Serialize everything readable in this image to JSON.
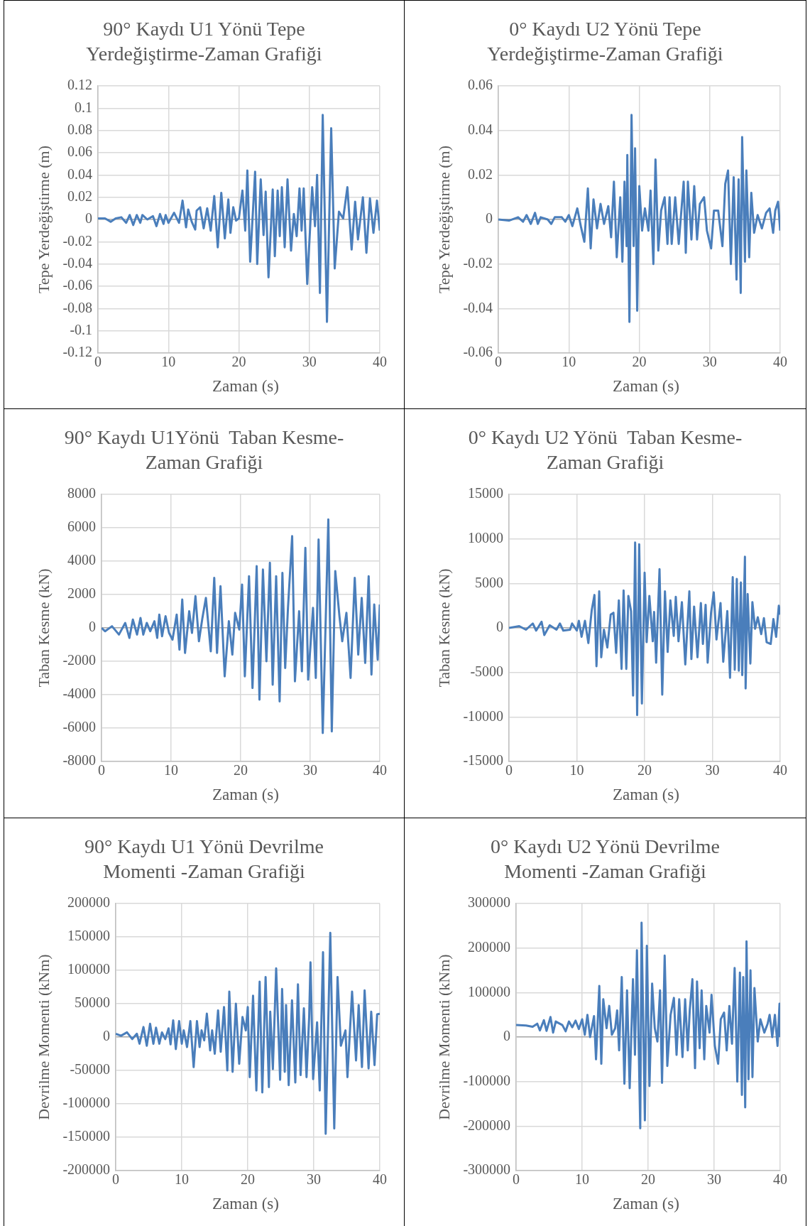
{
  "chart_data": [
    {
      "type": "line",
      "title": "90° Kaydı U1 Yönü Tepe Yerdeğiştirme-Zaman Grafiği",
      "xlabel": "Zaman (s)",
      "ylabel": "Tepe Yerdeğiştirme (m)",
      "xlim": [
        0,
        40
      ],
      "xticks": [
        0,
        10,
        20,
        30,
        40
      ],
      "ylim": [
        -0.12,
        0.12
      ],
      "yticks": [
        -0.12,
        -0.1,
        -0.08,
        -0.06,
        -0.04,
        -0.02,
        0,
        0.02,
        0.04,
        0.06,
        0.08,
        0.1,
        0.12
      ],
      "grid": true,
      "marker": "none",
      "series": [
        {
          "color": "#4a7ebb",
          "x": [
            0,
            1,
            1.8,
            2.5,
            3.3,
            4,
            4.5,
            5,
            5.5,
            6,
            6.3,
            7,
            7.8,
            8.3,
            8.8,
            9.3,
            9.6,
            10,
            10.8,
            11.5,
            12,
            12.5,
            12.8,
            13.3,
            13.8,
            14,
            14.5,
            15,
            15.5,
            16,
            16.5,
            17,
            17.5,
            18,
            18.5,
            18.8,
            19.2,
            19.6,
            20,
            20.5,
            20.9,
            21.2,
            21.6,
            22.3,
            22.6,
            23.1,
            23.5,
            23.8,
            24.2,
            24.8,
            25.1,
            25.5,
            25.8,
            26.1,
            26.5,
            26.9,
            27.4,
            27.8,
            28.2,
            28.6,
            28.9,
            29.2,
            29.7,
            30.4,
            30.8,
            31.1,
            31.5,
            31.9,
            32.5,
            33.1,
            33.6,
            34.2,
            34.8,
            35.4,
            36,
            36.5,
            36.9,
            37.6,
            38.1,
            38.6,
            39.1,
            39.6,
            40
          ],
          "values": [
            0.001,
            0.001,
            -0.002,
            0.001,
            0.002,
            -0.003,
            0.004,
            -0.005,
            0.004,
            -0.003,
            0.004,
            0,
            0.003,
            -0.006,
            0.005,
            -0.004,
            0.004,
            -0.003,
            0.006,
            -0.003,
            0.017,
            -0.007,
            0.009,
            -0.002,
            -0.009,
            0.008,
            0.011,
            -0.008,
            0.01,
            -0.01,
            0.021,
            -0.025,
            0.024,
            -0.017,
            0.018,
            -0.012,
            0.011,
            -0.001,
            0.001,
            0.026,
            -0.01,
            0.044,
            -0.038,
            0.043,
            -0.04,
            0.036,
            -0.014,
            0.025,
            -0.052,
            0.027,
            -0.033,
            0.026,
            -0.015,
            0.029,
            -0.025,
            0.036,
            -0.028,
            0.005,
            -0.015,
            0.028,
            -0.01,
            0.028,
            -0.058,
            0.029,
            -0.006,
            0.04,
            -0.066,
            0.094,
            -0.092,
            0.082,
            -0.044,
            0.007,
            0.001,
            0.029,
            -0.027,
            0.016,
            -0.018,
            0.02,
            -0.03,
            0.019,
            -0.012,
            0.017,
            -0.01
          ]
        }
      ]
    },
    {
      "type": "line",
      "title": "0° Kaydı U2 Yönü Tepe Yerdeğiştirme-Zaman Grafiği",
      "xlabel": "Zaman (s)",
      "ylabel": "Tepe Yerdeğiştirme (m)",
      "xlim": [
        0,
        40
      ],
      "xticks": [
        0,
        10,
        20,
        30,
        40
      ],
      "ylim": [
        -0.06,
        0.06
      ],
      "yticks": [
        -0.06,
        -0.04,
        -0.02,
        0,
        0.02,
        0.04,
        0.06
      ],
      "grid": true,
      "marker": "none",
      "series": [
        {
          "color": "#4a7ebb",
          "x": [
            0,
            1.5,
            2.8,
            3.5,
            4,
            4.6,
            5.2,
            5.6,
            6,
            7,
            7.5,
            8,
            9,
            9.5,
            10,
            10.5,
            11.2,
            11.7,
            12.2,
            12.7,
            13.1,
            13.5,
            14,
            14.5,
            15,
            15.6,
            16,
            16.4,
            16.8,
            17.3,
            17.6,
            17.9,
            18.2,
            18.3,
            18.6,
            18.9,
            19.2,
            19.4,
            19.7,
            20,
            20.4,
            20.8,
            21.3,
            21.6,
            22,
            22.3,
            22.7,
            23.1,
            23.6,
            24,
            24.3,
            24.6,
            25.1,
            25.6,
            26.3,
            26.6,
            26.9,
            27.4,
            27.8,
            28.2,
            28.6,
            29.2,
            29.6,
            30.2,
            30.6,
            31.2,
            31.8,
            32.2,
            32.6,
            33,
            33.4,
            33.8,
            34.1,
            34.4,
            34.6,
            35,
            35.2,
            35.6,
            35.9,
            36.3,
            36.8,
            37.4,
            38,
            38.5,
            39,
            39.3,
            39.7,
            40
          ],
          "values": [
            0,
            -0.0005,
            0.001,
            -0.001,
            0.002,
            -0.002,
            0.003,
            -0.002,
            0.001,
            0,
            -0.002,
            0.001,
            0.001,
            -0.001,
            0.002,
            -0.003,
            0.005,
            -0.003,
            -0.01,
            0.014,
            -0.013,
            0.009,
            -0.004,
            0.007,
            -0.002,
            0.006,
            -0.008,
            0.017,
            -0.017,
            0.01,
            -0.019,
            0.017,
            -0.012,
            0.029,
            -0.046,
            0.047,
            -0.012,
            0.032,
            -0.041,
            0.015,
            -0.005,
            0.005,
            -0.005,
            0.013,
            -0.02,
            0.027,
            -0.014,
            0.004,
            0.01,
            -0.011,
            0.01,
            -0.011,
            0.01,
            -0.011,
            0.017,
            -0.015,
            0.017,
            -0.009,
            0.015,
            -0.009,
            0.007,
            0.01,
            -0.005,
            -0.013,
            0.004,
            0.004,
            -0.012,
            0.016,
            0.022,
            -0.02,
            0.019,
            -0.027,
            0.018,
            -0.033,
            0.037,
            -0.019,
            0.022,
            -0.017,
            0.012,
            -0.006,
            0.002,
            -0.004,
            0.003,
            0.005,
            -0.006,
            0.004,
            0.008,
            -0.005
          ]
        }
      ]
    },
    {
      "type": "line",
      "title": "90° Kaydı U1Yönü  Taban Kesme-Zaman Grafiği",
      "xlabel": "Zaman (s)",
      "ylabel": "Taban Kesme (kN)",
      "xlim": [
        0,
        40
      ],
      "xticks": [
        0,
        10,
        20,
        30,
        40
      ],
      "ylim": [
        -8000,
        8000
      ],
      "yticks": [
        -8000,
        -6000,
        -4000,
        -2000,
        0,
        2000,
        4000,
        6000,
        8000
      ],
      "grid": true,
      "marker": "none",
      "series": [
        {
          "color": "#4a7ebb",
          "x": [
            0,
            0.5,
            1.5,
            2.5,
            3.4,
            4,
            4.5,
            5.1,
            5.6,
            6,
            6.5,
            7,
            7.6,
            8,
            8.3,
            8.7,
            9.2,
            9.7,
            10.2,
            10.8,
            11.2,
            11.6,
            12,
            12.6,
            13,
            13.5,
            14,
            14.5,
            15,
            15.7,
            16.2,
            16.6,
            17.1,
            17.7,
            18.3,
            18.8,
            19.2,
            19.8,
            20.2,
            20.6,
            21.2,
            21.7,
            22.3,
            22.7,
            23.2,
            23.7,
            24.2,
            24.6,
            25.1,
            25.6,
            26,
            26.4,
            26.8,
            27.4,
            27.8,
            28.4,
            28.8,
            29.3,
            29.7,
            30.4,
            30.8,
            31.2,
            31.8,
            32.6,
            33.1,
            33.6,
            34.2,
            34.6,
            35.2,
            35.8,
            36.4,
            36.9,
            37.4,
            37.9,
            38.4,
            38.8,
            39.2,
            39.7,
            40
          ],
          "values": [
            0,
            -200,
            100,
            -400,
            300,
            -600,
            500,
            -400,
            600,
            -400,
            300,
            -200,
            400,
            -600,
            800,
            -500,
            700,
            -300,
            -700,
            800,
            -1300,
            1700,
            -1500,
            1000,
            -300,
            1900,
            -800,
            600,
            1800,
            -1400,
            3000,
            -1500,
            2500,
            -2900,
            400,
            -1600,
            900,
            -100,
            2600,
            -2900,
            3100,
            -3600,
            3700,
            -4300,
            3500,
            -2000,
            3900,
            -3400,
            3100,
            -4400,
            3300,
            -2400,
            1200,
            5500,
            -3200,
            1000,
            -2600,
            4800,
            -3100,
            1200,
            -3000,
            5300,
            -6300,
            6500,
            -6200,
            3400,
            700,
            -800,
            900,
            -3000,
            3000,
            -1600,
            1800,
            -2100,
            3100,
            -2800,
            1400,
            -1900,
            1400
          ]
        }
      ]
    },
    {
      "type": "line",
      "title": "0° Kaydı U2 Yönü  Taban Kesme-Zaman Grafiği",
      "xlabel": "Zaman (s)",
      "ylabel": "Taban Kesme (kN)",
      "xlim": [
        0,
        40
      ],
      "xticks": [
        0,
        10,
        20,
        30,
        40
      ],
      "ylim": [
        -15000,
        15000
      ],
      "yticks": [
        -15000,
        -10000,
        -5000,
        0,
        5000,
        10000,
        15000
      ],
      "grid": true,
      "marker": "none",
      "series": [
        {
          "color": "#4a7ebb",
          "x": [
            0,
            1.5,
            2.5,
            3.5,
            4,
            4.8,
            5.2,
            6,
            7,
            7.5,
            8,
            9,
            9.3,
            10,
            10.3,
            10.7,
            11.2,
            11.7,
            12.2,
            12.6,
            12.9,
            13.3,
            13.6,
            14,
            14.5,
            15,
            15.4,
            15.8,
            16.2,
            16.6,
            16.9,
            17.3,
            17.6,
            18,
            18.3,
            18.6,
            18.9,
            19.2,
            19.6,
            20,
            20.3,
            20.7,
            21.2,
            21.4,
            21.7,
            22.2,
            22.6,
            23,
            23.4,
            23.8,
            24.3,
            24.6,
            25,
            25.5,
            26,
            26.6,
            26.9,
            27.3,
            27.8,
            28.3,
            28.6,
            29,
            29.3,
            29.8,
            30.2,
            30.6,
            31.2,
            31.6,
            32.2,
            32.6,
            33,
            33.3,
            33.6,
            33.9,
            34.2,
            34.4,
            34.8,
            34.9,
            35.2,
            35.6,
            35.9,
            36.3,
            36.7,
            37.2,
            37.6,
            38,
            38.6,
            39,
            39.4,
            39.8,
            40
          ],
          "values": [
            0,
            200,
            -200,
            500,
            -300,
            700,
            -800,
            300,
            -200,
            500,
            -300,
            -200,
            500,
            -300,
            800,
            -1000,
            800,
            -1700,
            2000,
            3700,
            -4300,
            4100,
            -3300,
            -200,
            -2200,
            1500,
            1700,
            -2800,
            3100,
            -4600,
            4200,
            -4600,
            3600,
            1900,
            -7600,
            9600,
            -9800,
            9400,
            -8500,
            6200,
            -1600,
            3600,
            -1500,
            1800,
            -3900,
            6600,
            -7500,
            4100,
            -2700,
            3100,
            -900,
            3500,
            -1500,
            2900,
            -4100,
            4100,
            -3500,
            2400,
            -3300,
            2800,
            -1800,
            2600,
            -3900,
            1700,
            4000,
            -1300,
            2800,
            -3800,
            1900,
            -5600,
            5700,
            -4700,
            5500,
            -4800,
            5100,
            -5300,
            8000,
            -6800,
            3800,
            -4000,
            2900,
            -100,
            1200,
            -700,
            1100,
            -1600,
            -1800,
            1000,
            -1000,
            2500,
            1500
          ]
        }
      ]
    },
    {
      "type": "line",
      "title": "90° Kaydı U1 Yönü Devrilme Momenti -Zaman Grafiği",
      "xlabel": "Zaman (s)",
      "ylabel": "Devrilme Momenti (kNm)",
      "xlim": [
        0,
        40
      ],
      "xticks": [
        0,
        10,
        20,
        30,
        40
      ],
      "ylim": [
        -200000,
        200000
      ],
      "yticks": [
        -200000,
        -150000,
        -100000,
        -50000,
        0,
        50000,
        100000,
        150000,
        200000
      ],
      "grid": true,
      "marker": "none",
      "series": [
        {
          "color": "#4a7ebb",
          "x": [
            0,
            0.8,
            1.7,
            2.5,
            3.2,
            3.6,
            4.2,
            4.7,
            5.2,
            5.7,
            6.1,
            6.6,
            7,
            7.5,
            8,
            8.3,
            8.7,
            9.1,
            9.6,
            10,
            10.3,
            10.8,
            11.3,
            11.8,
            12.3,
            12.7,
            13,
            13.4,
            13.8,
            14.3,
            14.6,
            15,
            15.5,
            15.9,
            16.4,
            16.9,
            17.2,
            17.7,
            18.2,
            18.7,
            19.2,
            19.7,
            20,
            20.3,
            20.8,
            21.3,
            21.8,
            22.2,
            22.7,
            23.2,
            23.4,
            23.8,
            24.3,
            24.9,
            25.2,
            25.6,
            25.8,
            26.2,
            26.7,
            27.2,
            27.6,
            28,
            28.5,
            28.9,
            29.3,
            29.5,
            29.9,
            30.5,
            30.9,
            31.4,
            31.8,
            32.5,
            33.1,
            33.6,
            34.1,
            34.8,
            35.1,
            35.8,
            36.4,
            36.8,
            37.3,
            37.7,
            38.3,
            38.7,
            39.2,
            39.6,
            40
          ],
          "values": [
            5000,
            2000,
            7000,
            -3000,
            5000,
            -10000,
            15000,
            -13000,
            20000,
            -10000,
            14000,
            -10000,
            7000,
            -3000,
            13000,
            -11000,
            25000,
            -18000,
            24000,
            -10000,
            10000,
            -15000,
            24000,
            -45000,
            24000,
            -15000,
            10000,
            -5000,
            35000,
            -20000,
            10000,
            -25000,
            40000,
            -22000,
            45000,
            -50000,
            68000,
            -52000,
            50000,
            -40000,
            30000,
            10000,
            45000,
            -60000,
            62000,
            -80000,
            83000,
            -83000,
            90000,
            -75000,
            38000,
            -48000,
            103000,
            -64000,
            72000,
            -52000,
            48000,
            -72000,
            55000,
            -68000,
            79000,
            -57000,
            43000,
            -60000,
            30000,
            112000,
            -63000,
            22000,
            -80000,
            127000,
            -145000,
            156000,
            -137000,
            90000,
            -13000,
            10000,
            -60000,
            68000,
            -35000,
            48000,
            -45000,
            70000,
            -47000,
            38000,
            -42000,
            34000,
            35000
          ]
        }
      ]
    },
    {
      "type": "line",
      "title": "0° Kaydı U2 Yönü Devrilme Momenti -Zaman Grafiği",
      "xlabel": "Zaman (s)",
      "ylabel": "Devrilme Momenti (kNm)",
      "xlim": [
        0,
        40
      ],
      "xticks": [
        0,
        10,
        20,
        30,
        40
      ],
      "ylim": [
        -300000,
        300000
      ],
      "yticks": [
        -300000,
        -200000,
        -100000,
        0,
        100000,
        200000,
        300000
      ],
      "grid": true,
      "marker": "none",
      "series": [
        {
          "color": "#4a7ebb",
          "x": [
            0,
            1.5,
            2.5,
            3.2,
            3.6,
            4.2,
            4.6,
            5.2,
            5.6,
            6,
            7,
            7.5,
            8,
            8.5,
            9,
            9.5,
            10,
            10.4,
            10.8,
            11.2,
            11.8,
            12.1,
            12.6,
            12.9,
            13.2,
            13.7,
            14.1,
            14.5,
            15,
            15.3,
            15.6,
            16,
            16.4,
            16.8,
            17.2,
            17.7,
            18,
            18.3,
            18.8,
            19,
            19.5,
            19.8,
            20.2,
            20.6,
            21,
            21.4,
            21.8,
            22.1,
            22.5,
            22.9,
            23.4,
            23.9,
            24.3,
            24.7,
            25.2,
            25.6,
            26,
            26.3,
            26.7,
            27.1,
            27.4,
            27.8,
            28.1,
            28.5,
            28.8,
            29.3,
            29.6,
            30.1,
            30.6,
            31,
            31.5,
            31.9,
            32.3,
            32.7,
            33.1,
            33.5,
            33.9,
            34.2,
            34.4,
            34.7,
            34.9,
            35.2,
            35.5,
            35.8,
            36.1,
            36.6,
            37,
            37.6,
            38.1,
            38.4,
            38.8,
            39.2,
            39.6,
            39.9,
            40
          ],
          "values": [
            27000,
            26000,
            23000,
            30000,
            15000,
            38000,
            14000,
            45000,
            10000,
            35000,
            27000,
            13000,
            35000,
            22000,
            37000,
            18000,
            40000,
            5000,
            50000,
            0,
            47000,
            -50000,
            115000,
            -60000,
            85000,
            20000,
            70000,
            5000,
            20000,
            60000,
            -30000,
            135000,
            -105000,
            105000,
            -115000,
            130000,
            -40000,
            195000,
            -205000,
            257000,
            -187000,
            205000,
            -110000,
            120000,
            20000,
            -10000,
            105000,
            -103000,
            183000,
            -65000,
            50000,
            88000,
            -40000,
            85000,
            -45000,
            85000,
            -30000,
            60000,
            130000,
            -70000,
            125000,
            -25000,
            105000,
            -50000,
            70000,
            10000,
            95000,
            -20000,
            -60000,
            40000,
            55000,
            -30000,
            70000,
            -15000,
            155000,
            -100000,
            145000,
            -130000,
            135000,
            -158000,
            215000,
            -95000,
            150000,
            -90000,
            110000,
            -10000,
            40000,
            10000,
            30000,
            50000,
            0,
            50000,
            -20000,
            75000,
            0
          ]
        }
      ]
    }
  ]
}
